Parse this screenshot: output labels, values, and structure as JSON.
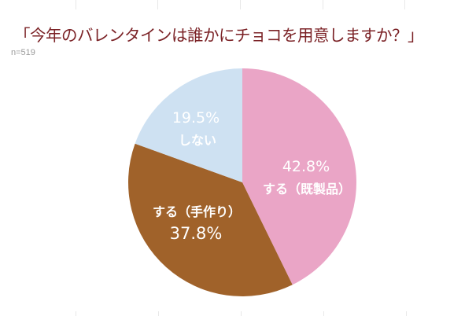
{
  "title": "「今年のバレンタインは誰かにチョコを用意しますか？」",
  "sample_size": "n=519",
  "colors": {
    "title": "#7b2226",
    "slice_store_bought": "#eaa5c6",
    "slice_handmade": "#a0622a",
    "slice_none": "#cee1f2",
    "label_text": "#ffffff"
  },
  "labels": {
    "store_bought_pct": "42.8%",
    "store_bought_name": "する（既製品）",
    "handmade_name": "する（手作り）",
    "handmade_pct": "37.8%",
    "none_pct": "19.5%",
    "none_name": "しない"
  },
  "chart_data": {
    "type": "pie",
    "title": "「今年のバレンタインは誰かにチョコを用意しますか？」",
    "subtitle": "n=519",
    "categories": [
      "する（既製品）",
      "する（手作り）",
      "しない"
    ],
    "values": [
      42.8,
      37.8,
      19.5
    ],
    "unit": "%",
    "start_angle": "12 o'clock",
    "direction": "clockwise",
    "colors": [
      "#eaa5c6",
      "#a0622a",
      "#cee1f2"
    ],
    "legend": "none (labels inside slices)"
  }
}
